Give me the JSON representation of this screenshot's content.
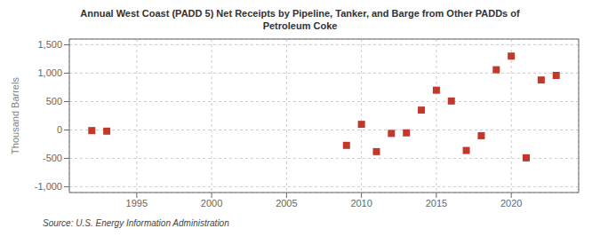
{
  "chart_data": {
    "type": "scatter",
    "title": "Annual West Coast (PADD 5) Net Receipts by Pipeline, Tanker, and Barge from Other PADDs of\nPetroleum Coke",
    "ylabel": "Thousand Barrels",
    "annotation": "Source: U.S. Energy Information Administration",
    "x": [
      1992,
      1993,
      2009,
      2010,
      2011,
      2012,
      2013,
      2014,
      2015,
      2016,
      2017,
      2018,
      2019,
      2020,
      2021,
      2022,
      2023
    ],
    "values": [
      -10,
      -20,
      -270,
      100,
      -380,
      -60,
      -50,
      350,
      700,
      510,
      -360,
      -100,
      1060,
      1300,
      -490,
      880,
      960
    ],
    "color": "#c0392b",
    "marker": "square",
    "xlim": [
      1990.5,
      2024.5
    ],
    "ylim": [
      -1100,
      1600
    ],
    "xticks": [
      1995,
      2000,
      2005,
      2010,
      2015,
      2020
    ],
    "yticks": [
      {
        "value": -1000,
        "label": "-1,000"
      },
      -500,
      0,
      500,
      {
        "value": 1000,
        "label": "1,000"
      },
      {
        "value": 1500,
        "label": "1,500"
      }
    ],
    "grid": true
  }
}
